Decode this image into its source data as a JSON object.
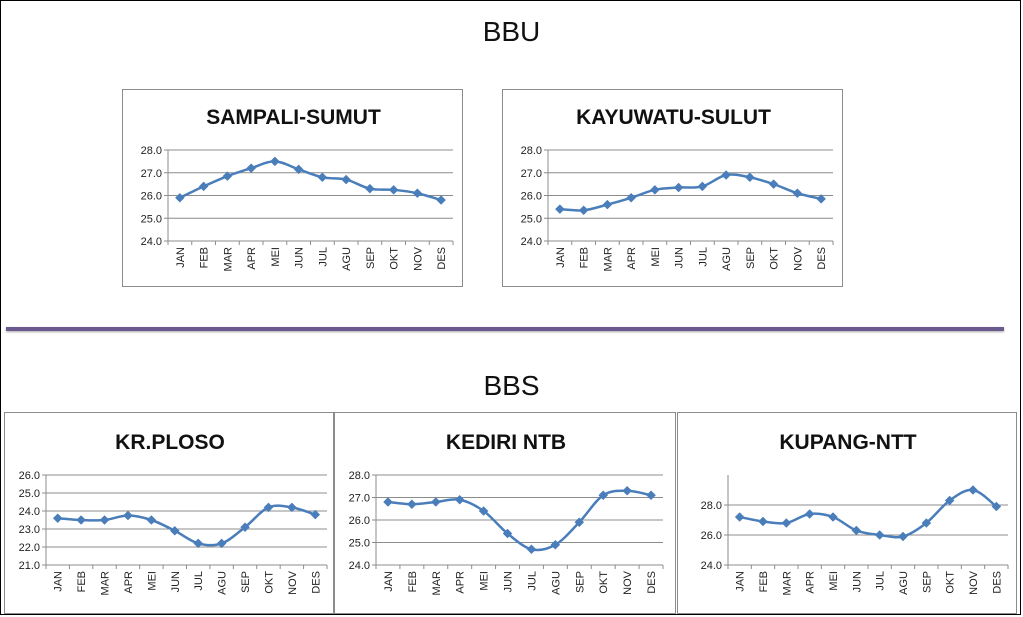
{
  "headings": {
    "top": "BBU",
    "bottom": "BBS"
  },
  "colors": {
    "series": "#4a7ebb",
    "grid": "#8c8c8c",
    "divider": "#6a5a8e"
  },
  "chart_data": [
    {
      "type": "line",
      "title": "SAMPALI-SUMUT",
      "categories": [
        "JAN",
        "FEB",
        "MAR",
        "APR",
        "MEI",
        "JUN",
        "JUL",
        "AGU",
        "SEP",
        "OKT",
        "NOV",
        "DES"
      ],
      "values": [
        25.9,
        26.4,
        26.85,
        27.2,
        27.5,
        27.15,
        26.8,
        26.7,
        26.3,
        26.25,
        26.1,
        25.8
      ],
      "ylim": [
        24.0,
        28.0
      ],
      "yticks": [
        "24.0",
        "25.0",
        "26.0",
        "27.0",
        "28.0"
      ],
      "marker": "diamond",
      "grid": true
    },
    {
      "type": "line",
      "title": "KAYUWATU-SULUT",
      "categories": [
        "JAN",
        "FEB",
        "MAR",
        "APR",
        "MEI",
        "JUN",
        "JUL",
        "AGU",
        "SEP",
        "OKT",
        "NOV",
        "DES"
      ],
      "values": [
        25.4,
        25.35,
        25.6,
        25.9,
        26.25,
        26.35,
        26.4,
        26.9,
        26.8,
        26.5,
        26.1,
        25.85
      ],
      "ylim": [
        24.0,
        28.0
      ],
      "yticks": [
        "24.0",
        "25.0",
        "26.0",
        "27.0",
        "28.0"
      ],
      "marker": "diamond",
      "grid": true
    },
    {
      "type": "line",
      "title": "KR.PLOSO",
      "categories": [
        "JAN",
        "FEB",
        "MAR",
        "APR",
        "MEI",
        "JUN",
        "JUL",
        "AGU",
        "SEP",
        "OKT",
        "NOV",
        "DES"
      ],
      "values": [
        23.6,
        23.5,
        23.5,
        23.75,
        23.5,
        22.9,
        22.2,
        22.2,
        23.1,
        24.2,
        24.2,
        23.8
      ],
      "ylim": [
        21.0,
        26.0
      ],
      "yticks": [
        "21.0",
        "22.0",
        "23.0",
        "24.0",
        "25.0",
        "26.0"
      ],
      "marker": "diamond",
      "grid": true
    },
    {
      "type": "line",
      "title": "KEDIRI NTB",
      "categories": [
        "JAN",
        "FEB",
        "MAR",
        "APR",
        "MEI",
        "JUN",
        "JUL",
        "AGU",
        "SEP",
        "OKT",
        "NOV",
        "DES"
      ],
      "values": [
        26.8,
        26.7,
        26.8,
        26.9,
        26.4,
        25.4,
        24.7,
        24.9,
        25.9,
        27.1,
        27.3,
        27.1
      ],
      "ylim": [
        24.0,
        28.0
      ],
      "yticks": [
        "24.0",
        "25.0",
        "26.0",
        "27.0",
        "28.0"
      ],
      "marker": "diamond",
      "grid": true
    },
    {
      "type": "line",
      "title": "KUPANG-NTT",
      "categories": [
        "JAN",
        "FEB",
        "MAR",
        "APR",
        "MEI",
        "JUN",
        "JUL",
        "AGU",
        "SEP",
        "OKT",
        "NOV",
        "DES"
      ],
      "values": [
        27.2,
        26.9,
        26.8,
        27.4,
        27.2,
        26.3,
        26.0,
        25.9,
        26.8,
        28.3,
        29.0,
        27.9
      ],
      "ylim": [
        24.0,
        30.0
      ],
      "yticks": [
        "24.0",
        "26.0",
        "28.0"
      ],
      "marker": "diamond",
      "grid": true
    }
  ]
}
